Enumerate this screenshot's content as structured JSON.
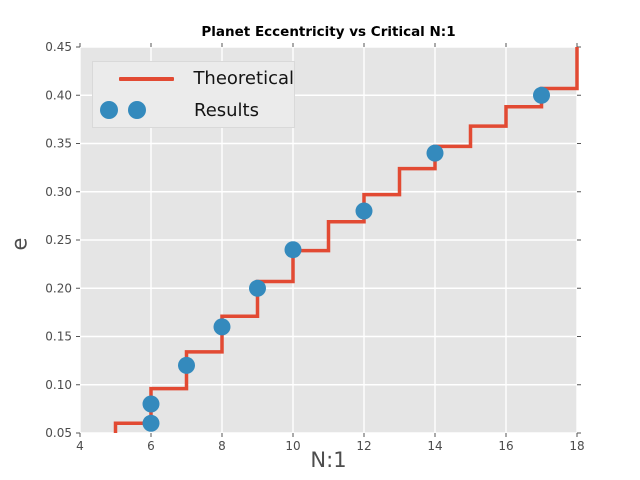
{
  "figure": {
    "background": "#ffffff"
  },
  "colors": {
    "plot_bg": "#e5e5e5",
    "grid": "#ffffff",
    "tick_mark": "#555555",
    "tick_label": "#4c4c4c",
    "axis_label": "#4d4d4d",
    "title": "#000000",
    "legend_bg": "#ebebeb",
    "legend_border": "#d9d9d9",
    "theoretical_red": "#e24a33",
    "results_blue": "#348abd"
  },
  "chart_data": {
    "type": "line",
    "title": "Planet Eccentricity vs Critical N:1",
    "xlabel": "N:1",
    "ylabel": "e",
    "xlim": [
      4,
      18
    ],
    "ylim": [
      0.05,
      0.45
    ],
    "grid": true,
    "legend_position": "upper left",
    "xtick_values": [
      4,
      6,
      8,
      10,
      12,
      14,
      16,
      18
    ],
    "xtick_labels": [
      "4",
      "6",
      "8",
      "10",
      "12",
      "14",
      "16",
      "18"
    ],
    "ytick_values": [
      0.05,
      0.1,
      0.15,
      0.2,
      0.25,
      0.3,
      0.35,
      0.4,
      0.45
    ],
    "ytick_labels": [
      "0.05",
      "0.10",
      "0.15",
      "0.20",
      "0.25",
      "0.30",
      "0.35",
      "0.40",
      "0.45"
    ],
    "series": [
      {
        "name": "Theoretical",
        "type": "step",
        "color": "#e24a33",
        "step_start_n": [
          5,
          6,
          7,
          8,
          9,
          10,
          11,
          12,
          13,
          14,
          15,
          16,
          17
        ],
        "step_e": [
          0.06,
          0.096,
          0.134,
          0.171,
          0.207,
          0.239,
          0.269,
          0.297,
          0.324,
          0.347,
          0.368,
          0.388,
          0.407
        ],
        "enters_from_bottom_at_n": 5,
        "exits_at_top_at_n": 18
      },
      {
        "name": "Results",
        "type": "scatter",
        "color": "#348abd",
        "points": [
          [
            6,
            0.06
          ],
          [
            6,
            0.08
          ],
          [
            7,
            0.12
          ],
          [
            8,
            0.16
          ],
          [
            9,
            0.2
          ],
          [
            10,
            0.24
          ],
          [
            12,
            0.28
          ],
          [
            14,
            0.34
          ],
          [
            17,
            0.4
          ]
        ]
      }
    ]
  }
}
